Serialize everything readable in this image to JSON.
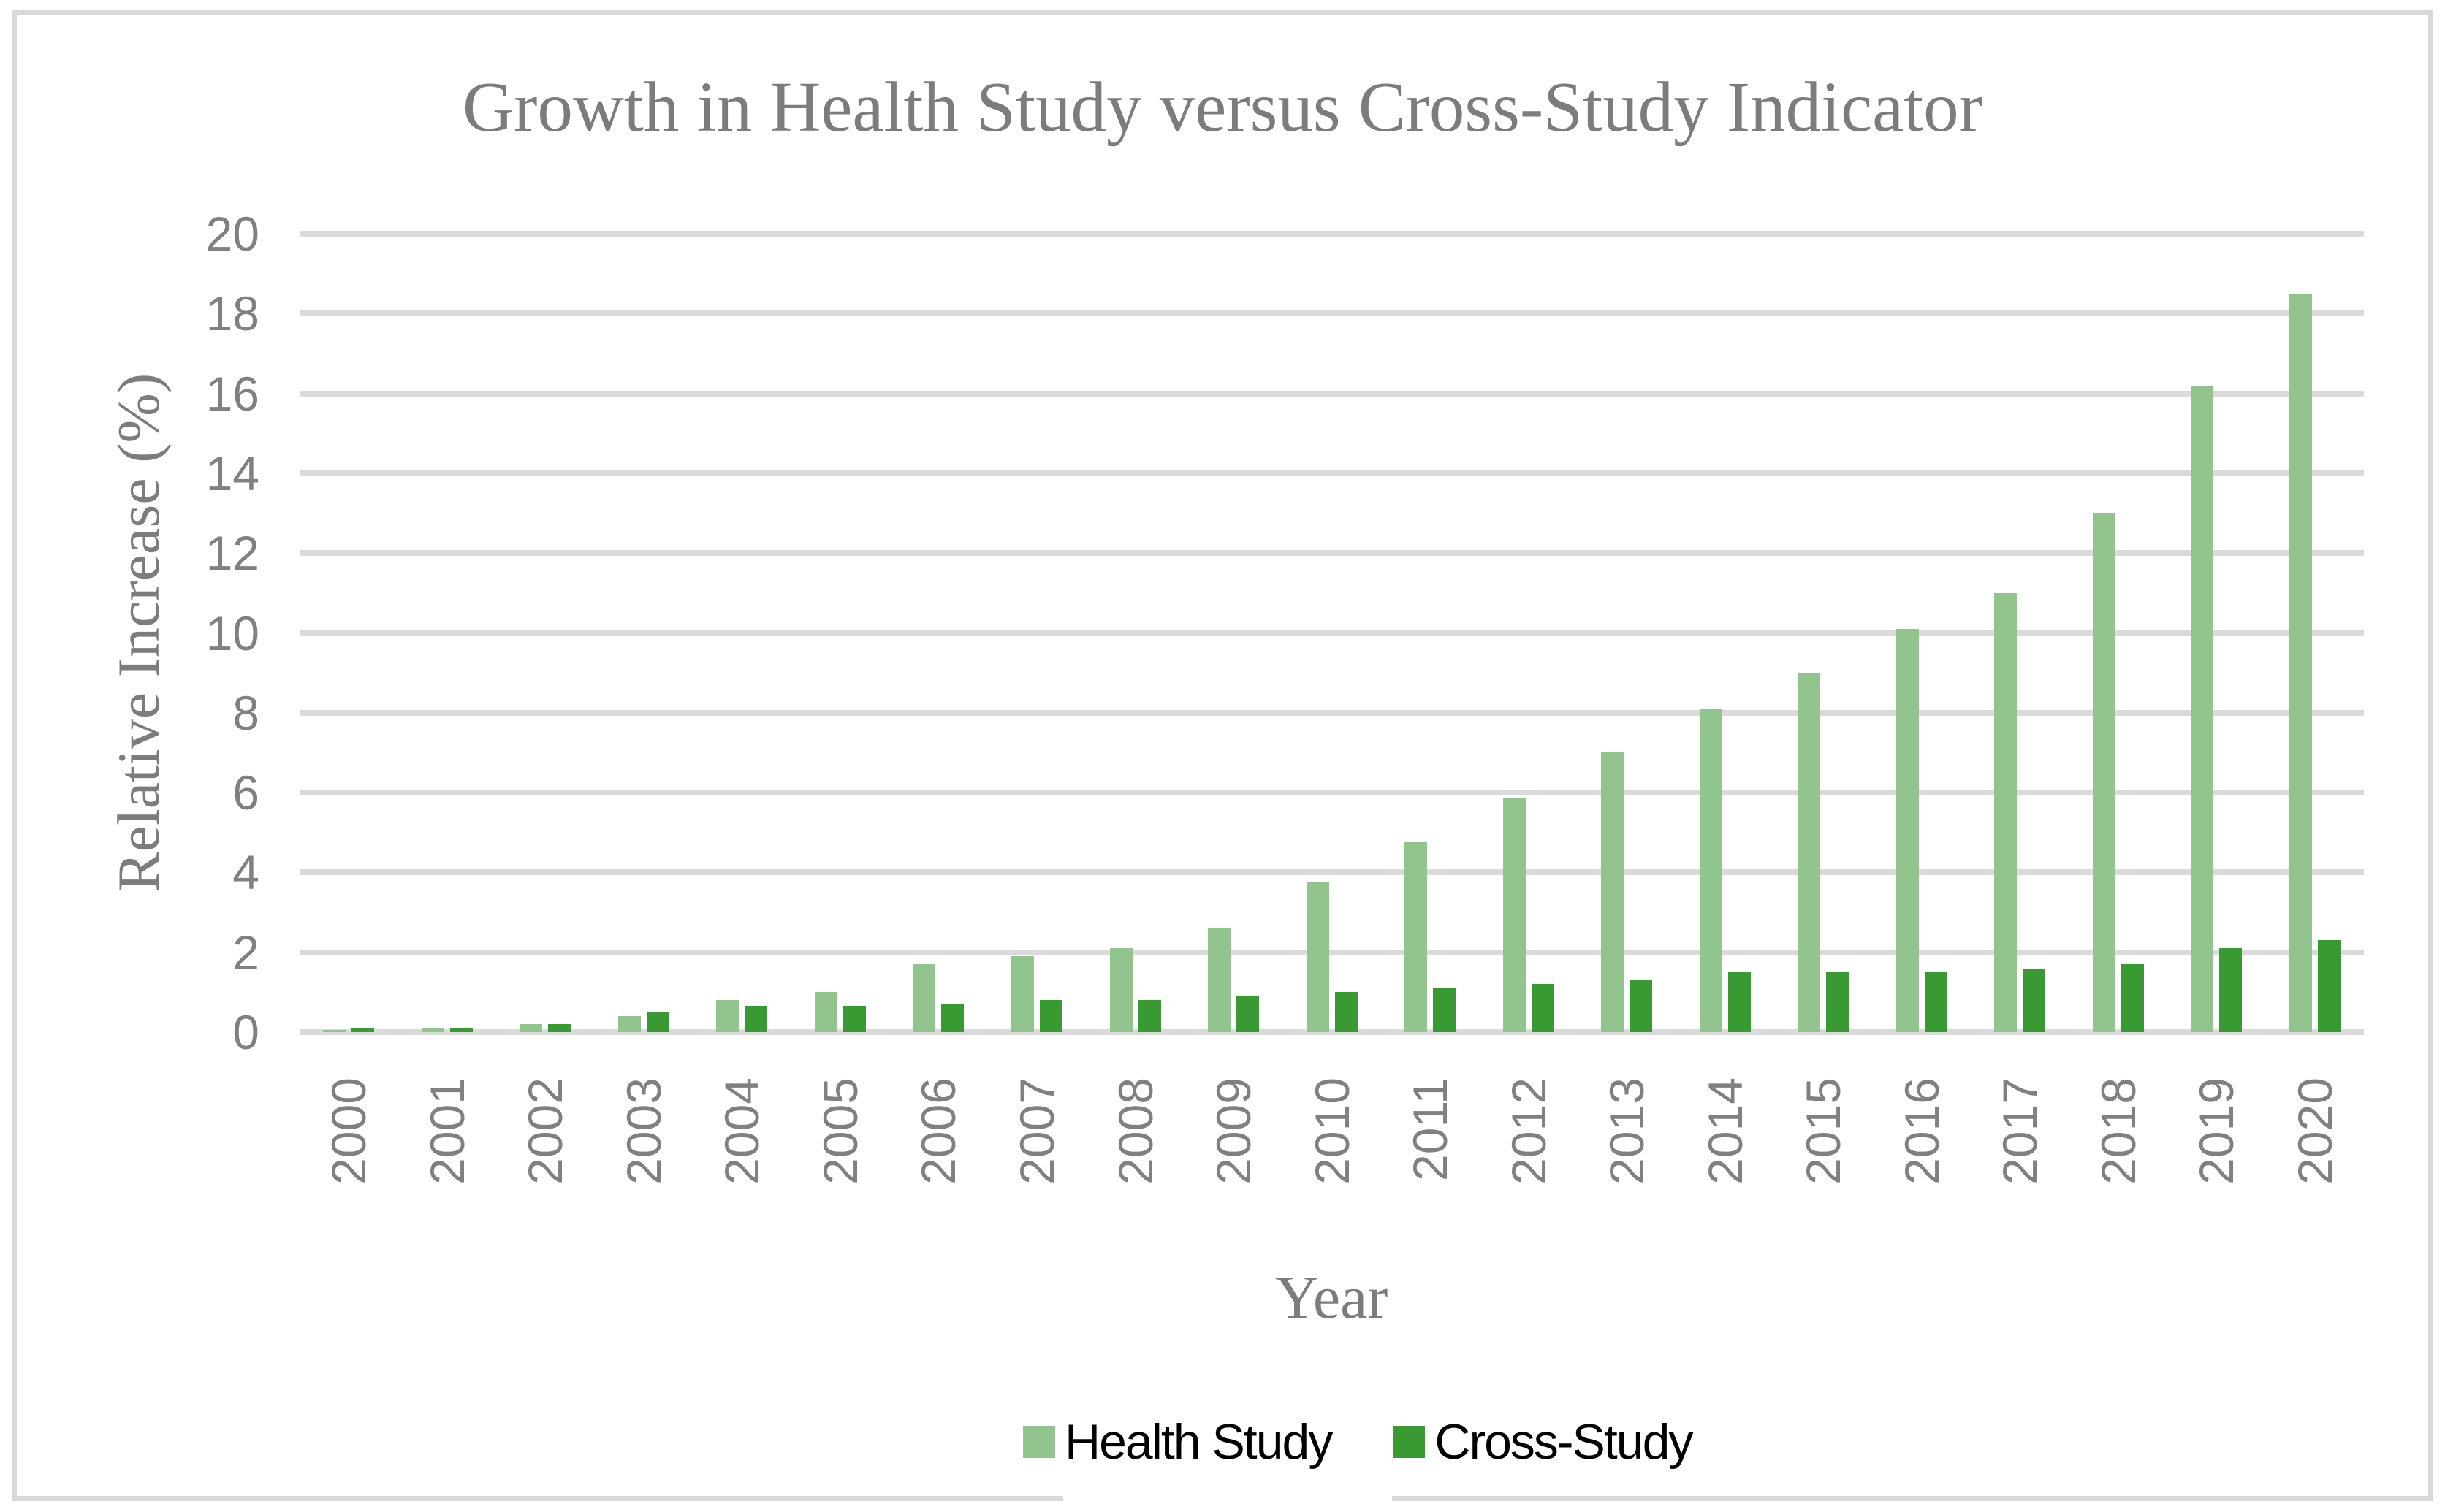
{
  "colors": {
    "health_light_green": "#92C58E",
    "cross_dark_green": "#399932",
    "gridline_gray": "#DADADA",
    "frame_border_gray": "#D9D9D9",
    "tick_text_gray": "#808080",
    "title_text_gray": "#7C7C7C",
    "legend_text": "#000000"
  },
  "chart_data": {
    "type": "bar",
    "title": "Growth in Health Study versus Cross-Study Indicator",
    "xlabel": "Year",
    "ylabel": "Relative Increase (%)",
    "ylim": [
      0,
      20
    ],
    "ytick_step": 2,
    "ytick_labels": [
      "0",
      "2",
      "4",
      "6",
      "8",
      "10",
      "12",
      "14",
      "16",
      "18",
      "20"
    ],
    "grid": true,
    "legend_position": "bottom",
    "categories": [
      "2000",
      "2001",
      "2002",
      "2003",
      "2004",
      "2005",
      "2006",
      "2007",
      "2008",
      "2009",
      "2010",
      "2011",
      "2012",
      "2013",
      "2014",
      "2015",
      "2016",
      "2017",
      "2018",
      "2019",
      "2020"
    ],
    "series": [
      {
        "name": "Health Study",
        "color": "#92C58E",
        "values": [
          0.05,
          0.1,
          0.2,
          0.4,
          0.8,
          1.0,
          1.7,
          1.9,
          2.1,
          2.6,
          3.75,
          4.75,
          5.85,
          7.0,
          8.1,
          9.0,
          10.1,
          11.0,
          13.0,
          16.2,
          18.5
        ]
      },
      {
        "name": "Cross-Study",
        "color": "#399932",
        "values": [
          0.1,
          0.1,
          0.2,
          0.5,
          0.65,
          0.65,
          0.7,
          0.8,
          0.8,
          0.9,
          1.0,
          1.1,
          1.2,
          1.3,
          1.5,
          1.5,
          1.5,
          1.6,
          1.7,
          2.1,
          2.3
        ]
      }
    ]
  }
}
